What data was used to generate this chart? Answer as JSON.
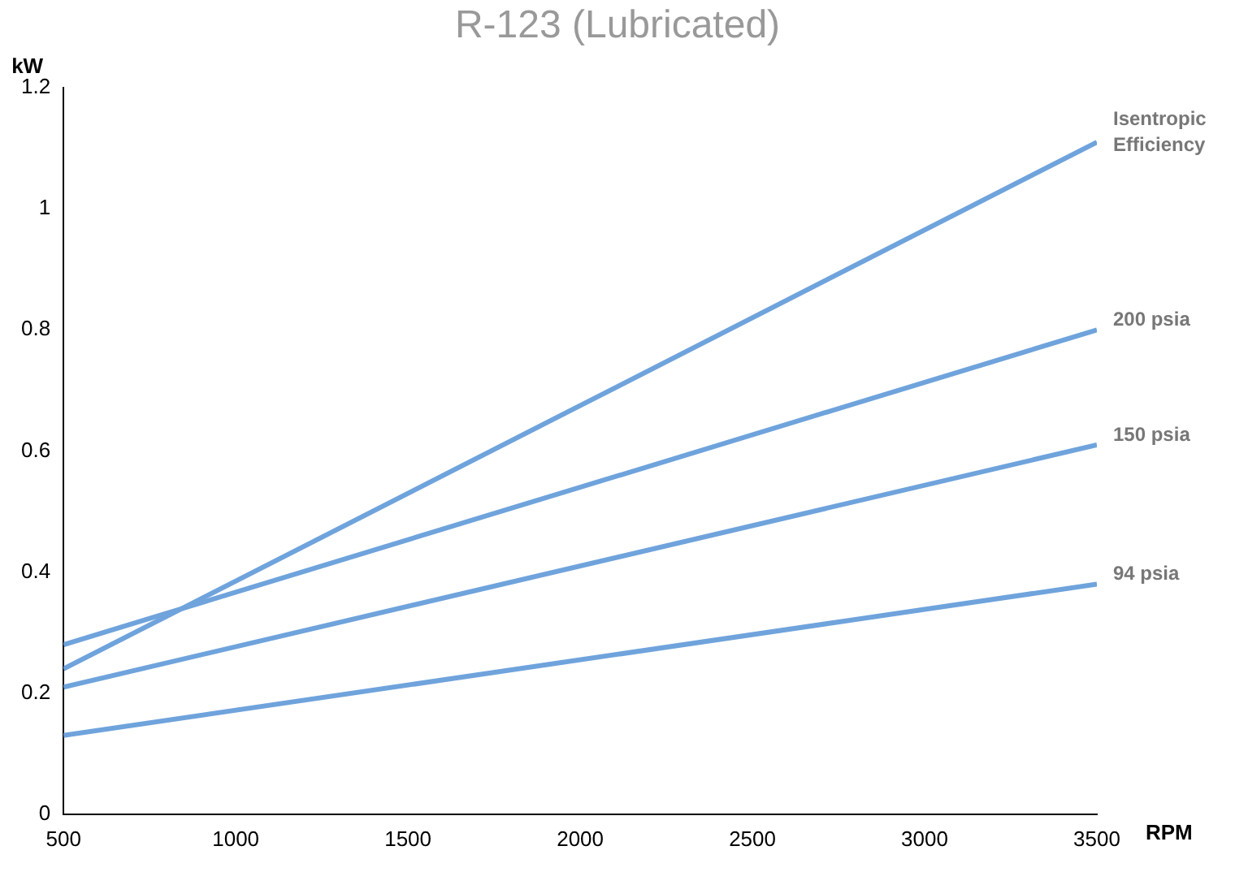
{
  "chart_data": {
    "type": "line",
    "title": "R-123 (Lubricated)",
    "xlabel": "RPM",
    "ylabel": "kW",
    "x": [
      500,
      3500
    ],
    "series": [
      {
        "name": "Isentropic Efficiency",
        "color": "#6fa3dc",
        "values": [
          0.24,
          1.11
        ]
      },
      {
        "name": "200 psia",
        "color": "#6fa3dc",
        "values": [
          0.28,
          0.8
        ]
      },
      {
        "name": "150 psia",
        "color": "#6fa3dc",
        "values": [
          0.21,
          0.61
        ]
      },
      {
        "name": "94 psia",
        "color": "#6fa3dc",
        "values": [
          0.13,
          0.38
        ]
      }
    ],
    "xlim": [
      500,
      3500
    ],
    "xticks": [
      500,
      1000,
      1500,
      2000,
      2500,
      3000,
      3500
    ],
    "ylim": [
      0,
      1.2
    ],
    "yticks": [
      0,
      0.2,
      0.4,
      0.6,
      0.8,
      1,
      1.2
    ],
    "grid": false,
    "legend": false,
    "marker": "none",
    "line_style": "solid"
  }
}
